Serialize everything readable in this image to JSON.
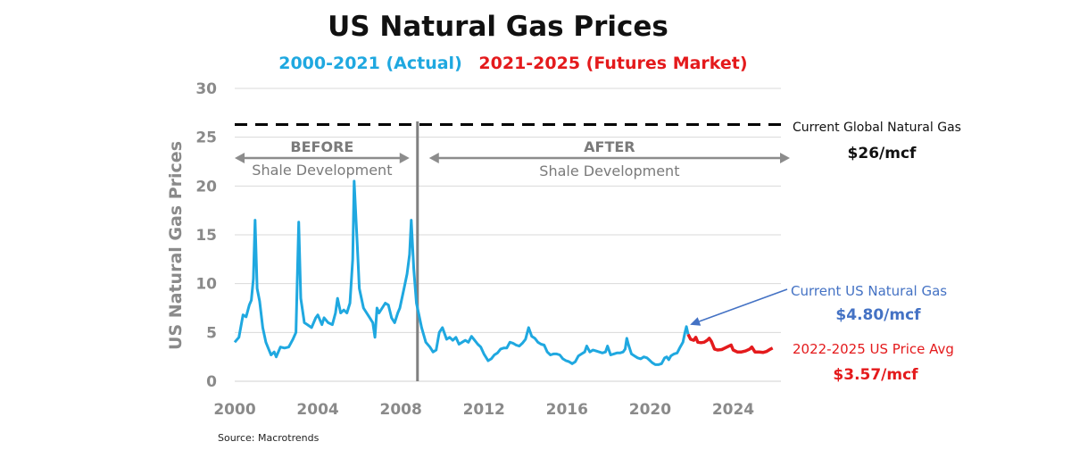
{
  "colors": {
    "actual": "#1fa8e0",
    "futures": "#e41a1c",
    "global": "#000000",
    "current_label": "#4472c4",
    "axis_text": "#8a8a8a",
    "divider": "#808080"
  },
  "chart_data": {
    "type": "line",
    "title": "US Natural Gas Prices",
    "subtitle_actual": "2000-2021 (Actual)",
    "subtitle_futures": "2021-2025 (Futures Market)",
    "ylabel": "US Natural Gas Prices",
    "xlabel": "",
    "xlim": [
      2000,
      2026.3
    ],
    "ylim": [
      0,
      30
    ],
    "x_ticks": [
      "2000",
      "2004",
      "2008",
      "2012",
      "2016",
      "2020",
      "2024"
    ],
    "y_ticks": [
      "0",
      "5",
      "10",
      "15",
      "20",
      "25",
      "30"
    ],
    "series": [
      {
        "name": "2000-2021 (Actual)",
        "points": [
          [
            2000.0,
            4.0
          ],
          [
            2000.2,
            4.5
          ],
          [
            2000.4,
            6.8
          ],
          [
            2000.55,
            6.6
          ],
          [
            2000.7,
            7.8
          ],
          [
            2000.8,
            8.3
          ],
          [
            2000.9,
            10.5
          ],
          [
            2000.98,
            16.5
          ],
          [
            2001.08,
            9.5
          ],
          [
            2001.2,
            8.2
          ],
          [
            2001.35,
            5.5
          ],
          [
            2001.5,
            4.0
          ],
          [
            2001.65,
            3.2
          ],
          [
            2001.75,
            2.7
          ],
          [
            2001.9,
            3.0
          ],
          [
            2002.0,
            2.5
          ],
          [
            2002.2,
            3.5
          ],
          [
            2002.4,
            3.4
          ],
          [
            2002.6,
            3.5
          ],
          [
            2002.8,
            4.3
          ],
          [
            2002.95,
            5.0
          ],
          [
            2003.08,
            16.3
          ],
          [
            2003.18,
            8.5
          ],
          [
            2003.35,
            6.0
          ],
          [
            2003.5,
            5.8
          ],
          [
            2003.7,
            5.5
          ],
          [
            2003.9,
            6.5
          ],
          [
            2004.0,
            6.8
          ],
          [
            2004.2,
            5.8
          ],
          [
            2004.3,
            6.5
          ],
          [
            2004.5,
            6.0
          ],
          [
            2004.7,
            5.8
          ],
          [
            2004.85,
            7.0
          ],
          [
            2004.95,
            8.5
          ],
          [
            2005.1,
            7.0
          ],
          [
            2005.25,
            7.3
          ],
          [
            2005.4,
            7.0
          ],
          [
            2005.55,
            8.0
          ],
          [
            2005.68,
            12.5
          ],
          [
            2005.75,
            20.5
          ],
          [
            2005.9,
            14.0
          ],
          [
            2006.0,
            9.5
          ],
          [
            2006.2,
            7.5
          ],
          [
            2006.35,
            7.0
          ],
          [
            2006.5,
            6.5
          ],
          [
            2006.65,
            6.0
          ],
          [
            2006.75,
            4.5
          ],
          [
            2006.85,
            7.5
          ],
          [
            2006.95,
            7.0
          ],
          [
            2007.1,
            7.5
          ],
          [
            2007.25,
            8.0
          ],
          [
            2007.4,
            7.8
          ],
          [
            2007.55,
            6.5
          ],
          [
            2007.7,
            6.0
          ],
          [
            2007.85,
            7.0
          ],
          [
            2007.95,
            7.5
          ],
          [
            2008.15,
            9.5
          ],
          [
            2008.3,
            11.0
          ],
          [
            2008.42,
            13.0
          ],
          [
            2008.5,
            16.5
          ],
          [
            2008.62,
            11.5
          ],
          [
            2008.75,
            8.0
          ],
          [
            2008.9,
            6.5
          ],
          [
            2009.0,
            5.5
          ],
          [
            2009.2,
            4.0
          ],
          [
            2009.4,
            3.5
          ],
          [
            2009.55,
            3.0
          ],
          [
            2009.7,
            3.2
          ],
          [
            2009.85,
            5.0
          ],
          [
            2010.0,
            5.5
          ],
          [
            2010.2,
            4.3
          ],
          [
            2010.35,
            4.5
          ],
          [
            2010.5,
            4.2
          ],
          [
            2010.65,
            4.5
          ],
          [
            2010.8,
            3.8
          ],
          [
            2010.95,
            4.0
          ],
          [
            2011.1,
            4.2
          ],
          [
            2011.25,
            4.0
          ],
          [
            2011.4,
            4.6
          ],
          [
            2011.55,
            4.2
          ],
          [
            2011.7,
            3.8
          ],
          [
            2011.85,
            3.5
          ],
          [
            2012.0,
            2.8
          ],
          [
            2012.2,
            2.1
          ],
          [
            2012.35,
            2.3
          ],
          [
            2012.5,
            2.7
          ],
          [
            2012.65,
            2.9
          ],
          [
            2012.8,
            3.3
          ],
          [
            2012.95,
            3.4
          ],
          [
            2013.1,
            3.4
          ],
          [
            2013.25,
            4.0
          ],
          [
            2013.4,
            3.9
          ],
          [
            2013.55,
            3.7
          ],
          [
            2013.7,
            3.6
          ],
          [
            2013.85,
            3.9
          ],
          [
            2014.0,
            4.3
          ],
          [
            2014.15,
            5.5
          ],
          [
            2014.3,
            4.6
          ],
          [
            2014.45,
            4.4
          ],
          [
            2014.6,
            4.0
          ],
          [
            2014.75,
            3.8
          ],
          [
            2014.9,
            3.7
          ],
          [
            2015.05,
            3.0
          ],
          [
            2015.2,
            2.7
          ],
          [
            2015.35,
            2.8
          ],
          [
            2015.5,
            2.8
          ],
          [
            2015.65,
            2.7
          ],
          [
            2015.8,
            2.3
          ],
          [
            2015.95,
            2.1
          ],
          [
            2016.1,
            2.0
          ],
          [
            2016.25,
            1.8
          ],
          [
            2016.4,
            2.0
          ],
          [
            2016.55,
            2.6
          ],
          [
            2016.7,
            2.8
          ],
          [
            2016.85,
            3.0
          ],
          [
            2016.95,
            3.6
          ],
          [
            2017.1,
            3.0
          ],
          [
            2017.25,
            3.2
          ],
          [
            2017.4,
            3.1
          ],
          [
            2017.55,
            3.0
          ],
          [
            2017.7,
            2.9
          ],
          [
            2017.85,
            3.0
          ],
          [
            2017.95,
            3.6
          ],
          [
            2018.1,
            2.7
          ],
          [
            2018.25,
            2.8
          ],
          [
            2018.4,
            2.9
          ],
          [
            2018.55,
            2.9
          ],
          [
            2018.7,
            3.0
          ],
          [
            2018.8,
            3.3
          ],
          [
            2018.88,
            4.4
          ],
          [
            2018.95,
            3.8
          ],
          [
            2019.1,
            2.8
          ],
          [
            2019.25,
            2.6
          ],
          [
            2019.4,
            2.4
          ],
          [
            2019.55,
            2.3
          ],
          [
            2019.7,
            2.5
          ],
          [
            2019.85,
            2.4
          ],
          [
            2019.95,
            2.2
          ],
          [
            2020.1,
            1.9
          ],
          [
            2020.25,
            1.7
          ],
          [
            2020.4,
            1.7
          ],
          [
            2020.55,
            1.8
          ],
          [
            2020.7,
            2.4
          ],
          [
            2020.8,
            2.5
          ],
          [
            2020.9,
            2.2
          ],
          [
            2021.0,
            2.6
          ],
          [
            2021.15,
            2.8
          ],
          [
            2021.3,
            2.9
          ],
          [
            2021.45,
            3.5
          ],
          [
            2021.58,
            4.0
          ],
          [
            2021.68,
            5.0
          ],
          [
            2021.75,
            5.6
          ],
          [
            2021.83,
            4.8
          ]
        ]
      },
      {
        "name": "2021-2025 (Futures Market)",
        "points": [
          [
            2021.83,
            4.8
          ],
          [
            2021.95,
            4.3
          ],
          [
            2022.1,
            4.2
          ],
          [
            2022.2,
            4.5
          ],
          [
            2022.3,
            4.0
          ],
          [
            2022.45,
            3.95
          ],
          [
            2022.6,
            4.0
          ],
          [
            2022.75,
            4.2
          ],
          [
            2022.85,
            4.4
          ],
          [
            2022.95,
            4.1
          ],
          [
            2023.1,
            3.3
          ],
          [
            2023.25,
            3.2
          ],
          [
            2023.45,
            3.25
          ],
          [
            2023.6,
            3.4
          ],
          [
            2023.8,
            3.6
          ],
          [
            2023.9,
            3.7
          ],
          [
            2024.0,
            3.2
          ],
          [
            2024.2,
            3.0
          ],
          [
            2024.4,
            3.0
          ],
          [
            2024.6,
            3.1
          ],
          [
            2024.8,
            3.3
          ],
          [
            2024.9,
            3.5
          ],
          [
            2025.05,
            3.0
          ],
          [
            2025.25,
            3.0
          ],
          [
            2025.45,
            2.95
          ],
          [
            2025.6,
            3.05
          ],
          [
            2025.8,
            3.3
          ],
          [
            2025.9,
            3.4
          ]
        ]
      }
    ],
    "global_price_line": {
      "y": 26.3,
      "label": "Current Global Natural Gas",
      "value": "$26/mcf"
    },
    "divider_year": 2008.8,
    "era_before": {
      "head": "BEFORE",
      "sub": "Shale Development"
    },
    "era_after": {
      "head": "AFTER",
      "sub": "Shale Development"
    },
    "current_us": {
      "x": 2021.75,
      "y": 5.6,
      "label": "Current US Natural Gas",
      "value": "$4.80/mcf"
    },
    "futures_avg": {
      "label": "2022-2025 US Price Avg",
      "value": "$3.57/mcf"
    },
    "source": "Source: Macrotrends"
  }
}
